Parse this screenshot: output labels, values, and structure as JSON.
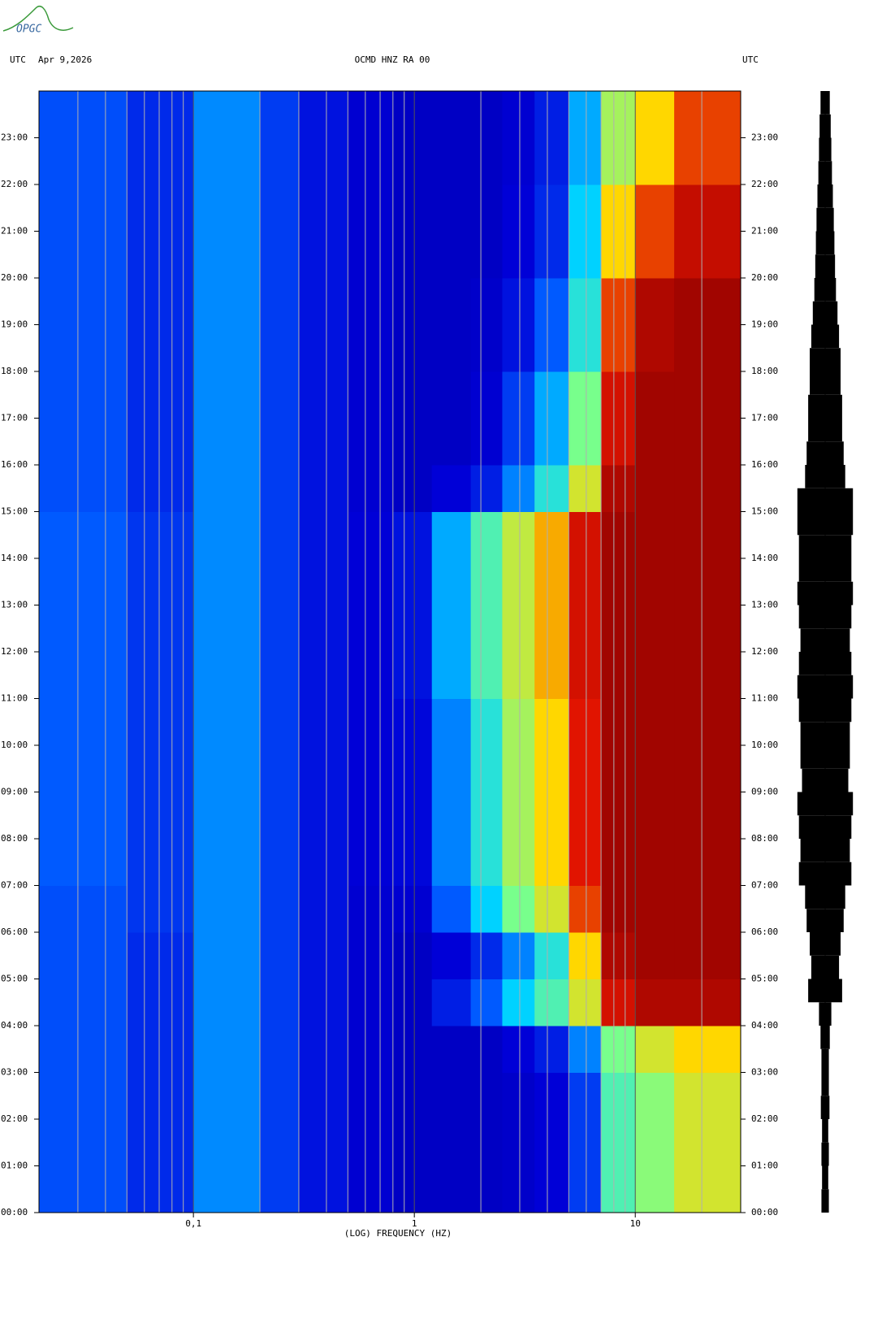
{
  "logo": "OPGC",
  "chart_data": {
    "type": "spectrogram",
    "title": "OCMD HNZ RA 00",
    "time_zone": "UTC",
    "date": "Apr 9,2026",
    "xlabel": "(LOG) FREQUENCY (HZ)",
    "log_x": true,
    "xlim": [
      0.02,
      30
    ],
    "xticks": [
      {
        "value": 0.1,
        "label": "0,1"
      },
      1,
      10
    ],
    "xgrid": [
      0.03,
      0.04,
      0.05,
      0.06,
      0.07,
      0.08,
      0.09,
      0.2,
      0.3,
      0.4,
      0.5,
      0.6,
      0.7,
      0.8,
      0.9,
      2,
      3,
      4,
      5,
      6,
      7,
      8,
      9,
      20
    ],
    "ylim": [
      0,
      24
    ],
    "yticks": [
      {
        "value": 0,
        "label": "00:00"
      },
      {
        "value": 1,
        "label": "01:00"
      },
      {
        "value": 2,
        "label": "02:00"
      },
      {
        "value": 3,
        "label": "03:00"
      },
      {
        "value": 4,
        "label": "04:00"
      },
      {
        "value": 5,
        "label": "05:00"
      },
      {
        "value": 6,
        "label": "06:00"
      },
      {
        "value": 7,
        "label": "07:00"
      },
      {
        "value": 8,
        "label": "08:00"
      },
      {
        "value": 9,
        "label": "09:00"
      },
      {
        "value": 10,
        "label": "10:00"
      },
      {
        "value": 11,
        "label": "11:00"
      },
      {
        "value": 12,
        "label": "12:00"
      },
      {
        "value": 13,
        "label": "13:00"
      },
      {
        "value": 14,
        "label": "14:00"
      },
      {
        "value": 15,
        "label": "15:00"
      },
      {
        "value": 16,
        "label": "16:00"
      },
      {
        "value": 17,
        "label": "17:00"
      },
      {
        "value": 18,
        "label": "18:00"
      },
      {
        "value": 19,
        "label": "19:00"
      },
      {
        "value": 20,
        "label": "20:00"
      },
      {
        "value": 21,
        "label": "21:00"
      },
      {
        "value": 22,
        "label": "22:00"
      },
      {
        "value": 23,
        "label": "23:00"
      }
    ],
    "freq_bins": [
      0.02,
      0.05,
      0.1,
      0.2,
      0.3,
      0.5,
      0.8,
      1.2,
      1.8,
      2.5,
      3.5,
      5,
      7,
      10,
      15,
      30
    ],
    "intensity": [
      [
        0.28,
        0.22,
        0.36,
        0.25,
        0.18,
        0.14,
        0.12,
        0.12,
        0.12,
        0.13,
        0.15,
        0.25,
        0.55,
        0.62,
        0.7
      ],
      [
        0.28,
        0.22,
        0.36,
        0.25,
        0.18,
        0.14,
        0.12,
        0.12,
        0.12,
        0.13,
        0.15,
        0.25,
        0.55,
        0.62,
        0.7
      ],
      [
        0.28,
        0.22,
        0.36,
        0.25,
        0.18,
        0.14,
        0.12,
        0.12,
        0.12,
        0.13,
        0.15,
        0.25,
        0.55,
        0.62,
        0.7
      ],
      [
        0.28,
        0.22,
        0.36,
        0.25,
        0.18,
        0.14,
        0.12,
        0.12,
        0.12,
        0.15,
        0.2,
        0.35,
        0.6,
        0.7,
        0.75
      ],
      [
        0.28,
        0.22,
        0.36,
        0.25,
        0.18,
        0.14,
        0.12,
        0.2,
        0.3,
        0.45,
        0.55,
        0.7,
        0.9,
        0.95,
        0.95
      ],
      [
        0.28,
        0.22,
        0.36,
        0.25,
        0.18,
        0.14,
        0.12,
        0.15,
        0.22,
        0.35,
        0.5,
        0.75,
        0.95,
        0.97,
        0.97
      ],
      [
        0.28,
        0.24,
        0.36,
        0.25,
        0.18,
        0.14,
        0.14,
        0.3,
        0.45,
        0.6,
        0.7,
        0.85,
        0.97,
        0.97,
        0.97
      ],
      [
        0.3,
        0.24,
        0.36,
        0.25,
        0.18,
        0.15,
        0.16,
        0.35,
        0.5,
        0.65,
        0.75,
        0.88,
        0.97,
        0.97,
        0.97
      ],
      [
        0.3,
        0.24,
        0.36,
        0.25,
        0.18,
        0.15,
        0.16,
        0.35,
        0.5,
        0.65,
        0.75,
        0.88,
        0.97,
        0.97,
        0.97
      ],
      [
        0.3,
        0.24,
        0.36,
        0.25,
        0.18,
        0.15,
        0.16,
        0.35,
        0.5,
        0.65,
        0.75,
        0.88,
        0.97,
        0.97,
        0.97
      ],
      [
        0.3,
        0.24,
        0.36,
        0.25,
        0.18,
        0.15,
        0.16,
        0.35,
        0.5,
        0.65,
        0.75,
        0.88,
        0.97,
        0.97,
        0.97
      ],
      [
        0.3,
        0.24,
        0.36,
        0.25,
        0.18,
        0.15,
        0.18,
        0.4,
        0.55,
        0.68,
        0.78,
        0.9,
        0.97,
        0.97,
        0.97
      ],
      [
        0.3,
        0.24,
        0.36,
        0.25,
        0.18,
        0.15,
        0.18,
        0.4,
        0.55,
        0.68,
        0.78,
        0.9,
        0.97,
        0.97,
        0.97
      ],
      [
        0.3,
        0.24,
        0.36,
        0.25,
        0.18,
        0.15,
        0.18,
        0.4,
        0.55,
        0.68,
        0.78,
        0.9,
        0.97,
        0.97,
        0.97
      ],
      [
        0.3,
        0.24,
        0.36,
        0.25,
        0.18,
        0.15,
        0.18,
        0.4,
        0.55,
        0.68,
        0.78,
        0.9,
        0.97,
        0.97,
        0.97
      ],
      [
        0.28,
        0.22,
        0.36,
        0.25,
        0.18,
        0.14,
        0.12,
        0.15,
        0.2,
        0.35,
        0.5,
        0.7,
        0.95,
        0.97,
        0.97
      ],
      [
        0.28,
        0.22,
        0.36,
        0.25,
        0.18,
        0.14,
        0.12,
        0.12,
        0.14,
        0.25,
        0.4,
        0.6,
        0.9,
        0.97,
        0.97
      ],
      [
        0.28,
        0.22,
        0.36,
        0.25,
        0.18,
        0.14,
        0.12,
        0.12,
        0.14,
        0.25,
        0.4,
        0.6,
        0.9,
        0.97,
        0.97
      ],
      [
        0.28,
        0.22,
        0.36,
        0.25,
        0.18,
        0.14,
        0.12,
        0.12,
        0.13,
        0.18,
        0.3,
        0.5,
        0.85,
        0.95,
        0.97
      ],
      [
        0.28,
        0.22,
        0.36,
        0.25,
        0.18,
        0.14,
        0.12,
        0.12,
        0.13,
        0.18,
        0.3,
        0.5,
        0.85,
        0.95,
        0.97
      ],
      [
        0.28,
        0.22,
        0.36,
        0.25,
        0.18,
        0.14,
        0.12,
        0.12,
        0.12,
        0.15,
        0.22,
        0.45,
        0.75,
        0.85,
        0.92
      ],
      [
        0.28,
        0.22,
        0.36,
        0.25,
        0.18,
        0.14,
        0.12,
        0.12,
        0.12,
        0.15,
        0.22,
        0.45,
        0.75,
        0.85,
        0.92
      ],
      [
        0.28,
        0.22,
        0.36,
        0.25,
        0.18,
        0.14,
        0.12,
        0.12,
        0.12,
        0.14,
        0.2,
        0.4,
        0.65,
        0.75,
        0.85
      ],
      [
        0.28,
        0.22,
        0.36,
        0.25,
        0.18,
        0.14,
        0.12,
        0.12,
        0.12,
        0.14,
        0.2,
        0.4,
        0.65,
        0.75,
        0.85
      ]
    ],
    "trace": {
      "color": "#000000",
      "values": [
        0.12,
        0.1,
        0.12,
        0.1,
        0.14,
        0.12,
        0.12,
        0.15,
        0.2,
        0.55,
        0.45,
        0.5,
        0.6,
        0.65,
        0.85,
        0.8,
        0.85,
        0.9,
        0.75,
        0.8,
        0.8,
        0.85,
        0.9,
        0.85,
        0.8,
        0.85,
        0.9,
        0.85,
        0.85,
        0.9,
        0.9,
        0.65,
        0.6,
        0.55,
        0.55,
        0.5,
        0.5,
        0.45,
        0.4,
        0.35,
        0.32,
        0.3,
        0.28,
        0.25,
        0.22,
        0.2,
        0.18,
        0.15
      ]
    }
  }
}
